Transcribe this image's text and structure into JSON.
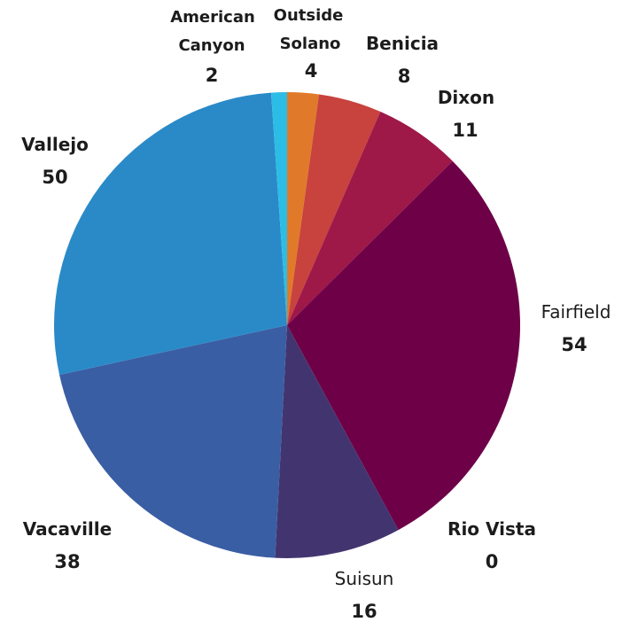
{
  "chart_data": {
    "type": "pie",
    "slices": [
      {
        "label_lines": [
          "Outside",
          "Solano"
        ],
        "value": 4,
        "color": "#e07a2a"
      },
      {
        "label_lines": [
          "Benicia"
        ],
        "value": 8,
        "color": "#c8423e"
      },
      {
        "label_lines": [
          "Dixon"
        ],
        "value": 11,
        "color": "#9e1848"
      },
      {
        "label_lines": [
          "Fairfield"
        ],
        "value": 54,
        "color": "#6e0048"
      },
      {
        "label_lines": [
          "Rio Vista"
        ],
        "value": 0,
        "color": "#5a1c5a"
      },
      {
        "label_lines": [
          "Suisun"
        ],
        "value": 16,
        "color": "#42356f"
      },
      {
        "label_lines": [
          "Vacaville"
        ],
        "value": 38,
        "color": "#3a5ea4"
      },
      {
        "label_lines": [
          "Vallejo"
        ],
        "value": 50,
        "color": "#2a8ac8"
      },
      {
        "label_lines": [
          "American",
          "Canyon"
        ],
        "value": 2,
        "color": "#2cbde6"
      }
    ]
  }
}
